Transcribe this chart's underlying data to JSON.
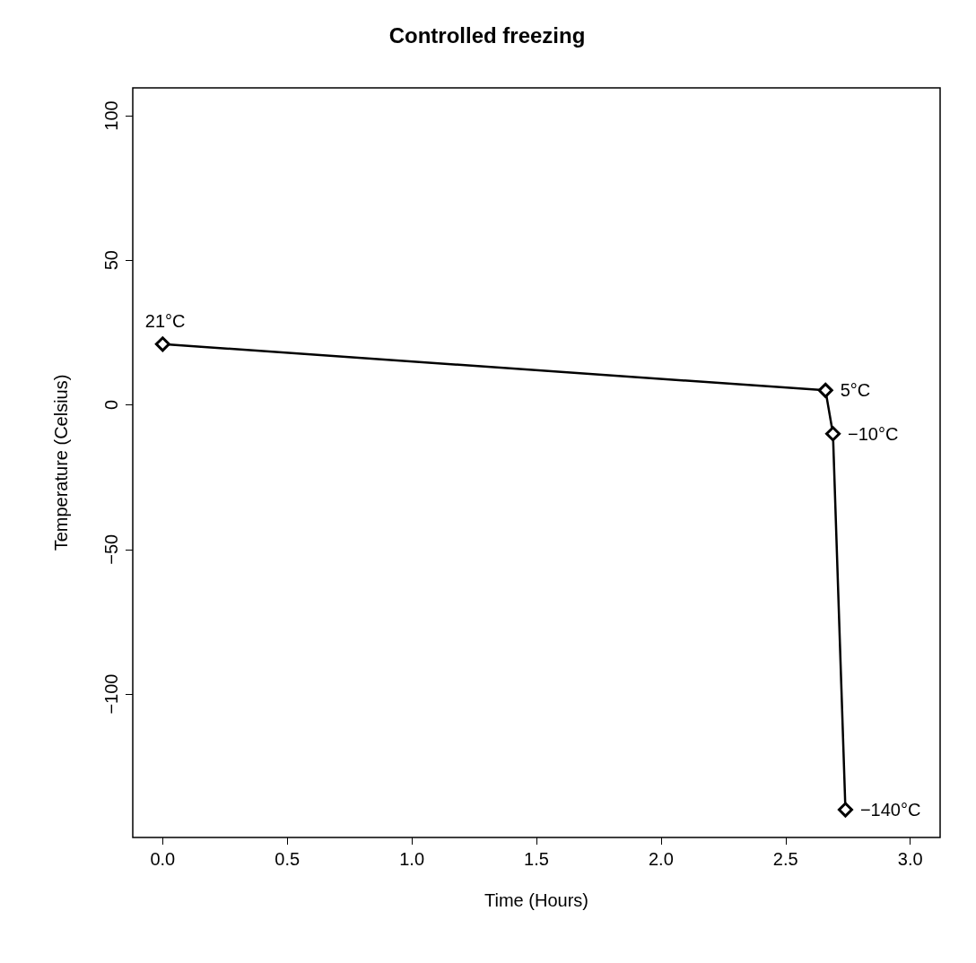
{
  "chart_data": {
    "type": "line",
    "title": "Controlled freezing",
    "xlabel": "Time (Hours)",
    "ylabel": "Temperature (Celsius)",
    "x": [
      0,
      2.66,
      2.69,
      2.74
    ],
    "values": [
      21,
      5,
      -10,
      -140
    ],
    "value_labels": [
      "21°C",
      "5°C",
      "−10°C",
      "−140°C"
    ],
    "color": "#000000",
    "marker": "diamond",
    "line_style": "solid",
    "grid": false,
    "xlim": [
      -0.12,
      3.12
    ],
    "xticks": [
      {
        "value": 0,
        "label": "0.0"
      },
      0.5,
      {
        "value": 1,
        "label": "1.0"
      },
      1.5,
      {
        "value": 2,
        "label": "2.0"
      },
      2.5,
      {
        "value": 3,
        "label": "3.0"
      }
    ],
    "ylim": [
      -149.6,
      109.6
    ],
    "yticks": [
      -100,
      -50,
      0,
      50,
      100
    ]
  }
}
